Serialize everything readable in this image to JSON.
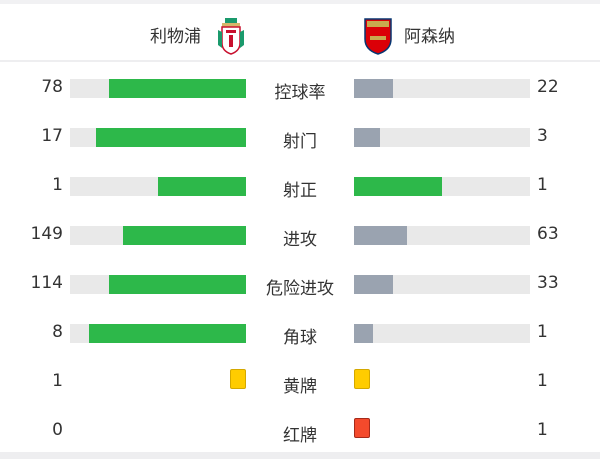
{
  "home": {
    "name": "利物浦",
    "logo": "liverpool-crest"
  },
  "away": {
    "name": "阿森纳",
    "logo": "arsenal-crest"
  },
  "colors": {
    "leader": "#2db84a",
    "trailer": "#9aa3b0",
    "track": "#e9e9e9",
    "yellow": "#ffcc00",
    "red": "#f44a2c"
  },
  "stats": [
    {
      "label": "控球率",
      "home": "78",
      "away": "22",
      "home_frac": 0.78,
      "away_frac": 0.22,
      "type": "bar"
    },
    {
      "label": "射门",
      "home": "17",
      "away": "3",
      "home_frac": 0.85,
      "away_frac": 0.15,
      "type": "bar"
    },
    {
      "label": "射正",
      "home": "1",
      "away": "1",
      "home_frac": 0.5,
      "away_frac": 0.5,
      "type": "bar"
    },
    {
      "label": "进攻",
      "home": "149",
      "away": "63",
      "home_frac": 0.7,
      "away_frac": 0.3,
      "type": "bar"
    },
    {
      "label": "危险进攻",
      "home": "114",
      "away": "33",
      "home_frac": 0.78,
      "away_frac": 0.22,
      "type": "bar"
    },
    {
      "label": "角球",
      "home": "8",
      "away": "1",
      "home_frac": 0.89,
      "away_frac": 0.11,
      "type": "bar"
    },
    {
      "label": "黄牌",
      "home": "1",
      "away": "1",
      "type": "yellow"
    },
    {
      "label": "红牌",
      "home": "0",
      "away": "1",
      "type": "red"
    }
  ]
}
